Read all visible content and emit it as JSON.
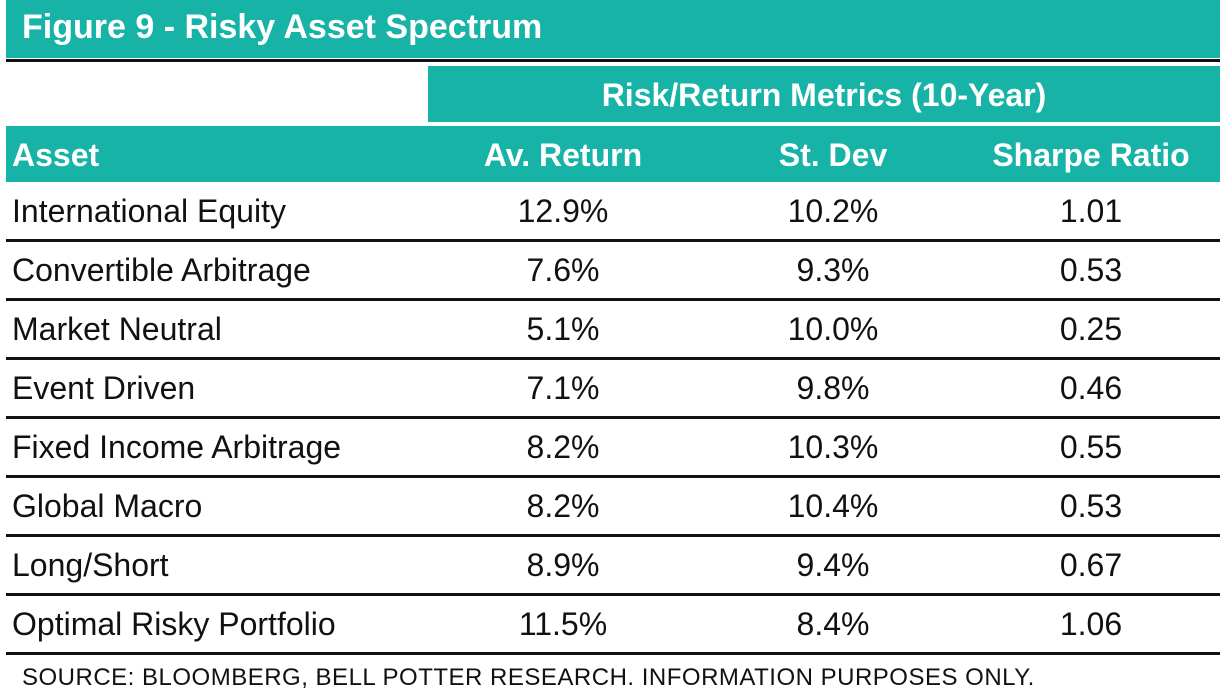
{
  "title": "Figure 9 - Risky Asset Spectrum",
  "group_header": "Risk/Return Metrics (10-Year)",
  "columns": [
    "Asset",
    "Av. Return",
    "St. Dev",
    "Sharpe Ratio"
  ],
  "rows": [
    [
      "International Equity",
      "12.9%",
      "10.2%",
      "1.01"
    ],
    [
      "Convertible Arbitrage",
      "7.6%",
      "9.3%",
      "0.53"
    ],
    [
      "Market Neutral",
      "5.1%",
      "10.0%",
      "0.25"
    ],
    [
      "Event Driven",
      "7.1%",
      "9.8%",
      "0.46"
    ],
    [
      "Fixed Income Arbitrage",
      "8.2%",
      "10.3%",
      "0.55"
    ],
    [
      "Global Macro",
      "8.2%",
      "10.4%",
      "0.53"
    ],
    [
      "Long/Short",
      "8.9%",
      "9.4%",
      "0.67"
    ],
    [
      "Optimal Risky Portfolio",
      "11.5%",
      "8.4%",
      "1.06"
    ]
  ],
  "source": "SOURCE: BLOOMBERG, BELL POTTER RESEARCH. INFORMATION PURPOSES ONLY.",
  "colors": {
    "accent": "#17b3a7",
    "rule": "#111111"
  }
}
